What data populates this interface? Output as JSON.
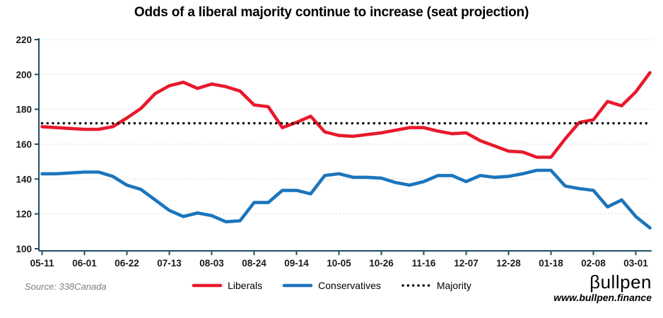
{
  "title": "Odds of a liberal majority continue to increase (seat projection)",
  "source": "Source: 338Canada",
  "branding": {
    "logo": "βullpen",
    "website": "www.bullpen.finance"
  },
  "legend": [
    {
      "label": "Liberals",
      "color": "#e8192c",
      "style": "solid"
    },
    {
      "label": "Conservatives",
      "color": "#1b75bc",
      "style": "solid"
    },
    {
      "label": "Majority",
      "color": "#000000",
      "style": "dotted"
    }
  ],
  "chart_data": {
    "type": "line",
    "title": "Odds of a liberal majority continue to increase (seat projection)",
    "x": [
      "05-11",
      "05-18",
      "05-25",
      "06-01",
      "06-08",
      "06-15",
      "06-22",
      "06-29",
      "07-06",
      "07-13",
      "07-20",
      "07-27",
      "08-03",
      "08-10",
      "08-17",
      "08-24",
      "08-31",
      "09-07",
      "09-14",
      "09-21",
      "09-28",
      "10-05",
      "10-12",
      "10-19",
      "10-26",
      "11-02",
      "11-09",
      "11-16",
      "11-23",
      "11-30",
      "12-07",
      "12-14",
      "12-21",
      "12-28",
      "01-04",
      "01-11",
      "01-18",
      "01-25",
      "02-01",
      "02-08",
      "02-15",
      "02-22",
      "03-01",
      "03-08"
    ],
    "x_tick_labels": [
      "05-11",
      "06-01",
      "06-22",
      "07-13",
      "08-03",
      "08-24",
      "09-14",
      "10-05",
      "10-26",
      "11-16",
      "12-07",
      "12-28",
      "01-18",
      "02-08",
      "03-01"
    ],
    "x_tick_every": 3,
    "series": [
      {
        "name": "Liberals",
        "color": "#e8192c",
        "style": "solid",
        "values": [
          170,
          169.5,
          169,
          168.5,
          168.5,
          170,
          175,
          180.5,
          189,
          193.5,
          195.5,
          192,
          194.5,
          193,
          190.5,
          182.5,
          181.5,
          169.5,
          172.5,
          176,
          167,
          165,
          164.5,
          165.5,
          166.5,
          168,
          169.5,
          169.5,
          167.5,
          166,
          166.5,
          162,
          159,
          156,
          155.5,
          152.5,
          152.5,
          163,
          172.5,
          174,
          184.5,
          182,
          190,
          201
        ]
      },
      {
        "name": "Conservatives",
        "color": "#1b75bc",
        "style": "solid",
        "values": [
          143,
          143,
          143.5,
          144,
          144,
          141.5,
          136.5,
          134,
          128,
          122,
          118.5,
          120.5,
          119,
          115.5,
          116,
          126.5,
          126.5,
          133.5,
          133.5,
          131.5,
          142,
          143,
          141,
          141,
          140.5,
          138,
          136.5,
          138.5,
          142,
          142,
          138.5,
          142,
          141,
          141.5,
          143,
          145,
          145,
          136,
          134.5,
          133.5,
          124,
          128,
          118.5,
          112
        ]
      },
      {
        "name": "Majority",
        "color": "#000000",
        "style": "dotted",
        "constant": 172
      }
    ],
    "ylim": [
      100,
      220
    ],
    "ytick_step": 20,
    "grid": true,
    "legend_position": "bottom",
    "axis_color": "#1f4e63",
    "grid_color": "#d9d9d9",
    "label_color": "#1a1a1a"
  }
}
